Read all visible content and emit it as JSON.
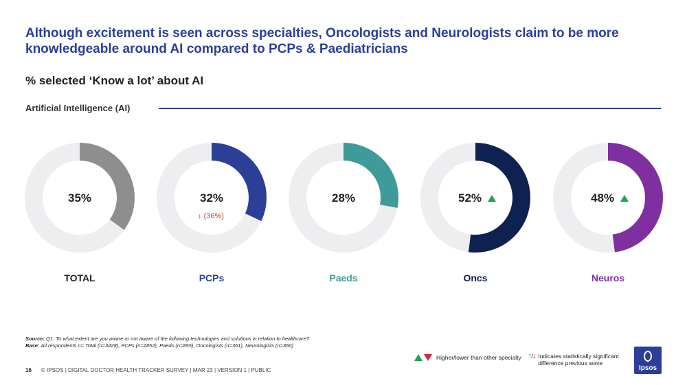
{
  "header": {
    "title": "Although excitement is seen across specialties, Oncologists and Neurologists claim to be more knowledgeable around AI compared to PCPs & Paediatricians",
    "subtitle": "% selected ‘Know a lot’ about AI",
    "section_label": "Artificial Intelligence (AI)"
  },
  "chart_data": {
    "type": "pie",
    "subtype": "donut",
    "track_color": "#eeeef0",
    "series": [
      {
        "name": "TOTAL",
        "value": 35,
        "label": "35%",
        "color": "#8e8e8e",
        "label_color": "#222222",
        "sig": ""
      },
      {
        "name": "PCPs",
        "value": 32,
        "label": "32%",
        "color": "#2b3f98",
        "label_color": "#2b3f98",
        "sig": "",
        "prev_wave": "(36%)",
        "prev_direction": "down"
      },
      {
        "name": "Paeds",
        "value": 28,
        "label": "28%",
        "color": "#3f9a9a",
        "label_color": "#3f9a9a",
        "sig": ""
      },
      {
        "name": "Oncs",
        "value": 52,
        "label": "52%",
        "color": "#0f2150",
        "label_color": "#0f2150",
        "sig": "up"
      },
      {
        "name": "Neuros",
        "value": 48,
        "label": "48%",
        "color": "#7f2f9f",
        "label_color": "#7f2f9f",
        "sig": "up"
      }
    ]
  },
  "source": {
    "source_label": "Source:",
    "source_text": "Q1. To what extent are you aware or not aware of the following technologies and solutions in relation to healthcare?",
    "base_label": "Base:",
    "base_text": "All respondents n= Total (n=3428), PCPs (n=1852), Paeds (n=855), Oncologists (n=361), Neurologists (n=360)"
  },
  "legend": {
    "specialty_text": "Higher/lower than other specialty",
    "wave_text": "Indicates statistically significant difference previous wave",
    "up_color": "#1fa64a",
    "down_color": "#d7263d"
  },
  "footer": {
    "page": "16",
    "text": "© IPSOS | DIGITAL DOCTOR HEALTH TRACKER SURVEY | MAR 23 | VERSION 1 | PUBLIC"
  },
  "logo": {
    "text": "Ipsos"
  }
}
